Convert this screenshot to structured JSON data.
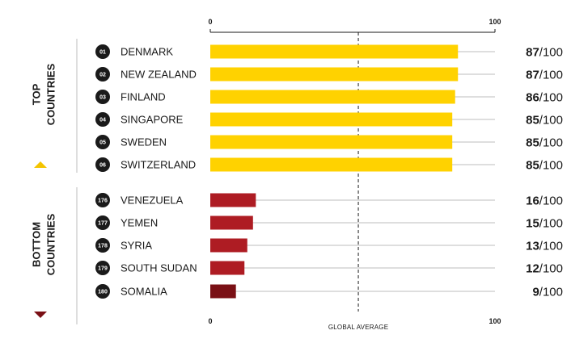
{
  "chart_data": {
    "type": "bar",
    "orientation": "horizontal",
    "xlim": [
      0,
      100
    ],
    "xtick_labels": [
      "0",
      "100"
    ],
    "reference_line": {
      "label": "GLOBAL AVERAGE",
      "value": 52,
      "style": "dashed"
    },
    "score_suffix": "/100",
    "groups": [
      {
        "label_lines": [
          "TOP",
          "COUNTRIES"
        ],
        "marker": "up-triangle",
        "color": "#FFD200",
        "items": [
          {
            "rank": "01",
            "country": "DENMARK",
            "value": 87
          },
          {
            "rank": "02",
            "country": "NEW ZEALAND",
            "value": 87
          },
          {
            "rank": "03",
            "country": "FINLAND",
            "value": 86
          },
          {
            "rank": "04",
            "country": "SINGAPORE",
            "value": 85
          },
          {
            "rank": "05",
            "country": "SWEDEN",
            "value": 85
          },
          {
            "rank": "06",
            "country": "SWITZERLAND",
            "value": 85
          }
        ]
      },
      {
        "label_lines": [
          "BOTTOM",
          "COUNTRIES"
        ],
        "marker": "down-triangle",
        "color": "#AE1C23",
        "items": [
          {
            "rank": "176",
            "country": "VENEZUELA",
            "value": 16
          },
          {
            "rank": "177",
            "country": "YEMEN",
            "value": 15
          },
          {
            "rank": "178",
            "country": "SYRIA",
            "value": 13
          },
          {
            "rank": "179",
            "country": "SOUTH SUDAN",
            "value": 12
          },
          {
            "rank": "180",
            "country": "SOMALIA",
            "value": 9,
            "color": "#7A1015"
          }
        ]
      }
    ]
  },
  "colors": {
    "top_marker": "#F4C400",
    "bottom_marker": "#7A1015",
    "track": "#bdbdbd",
    "rank_badge": "#1a1a1a"
  }
}
